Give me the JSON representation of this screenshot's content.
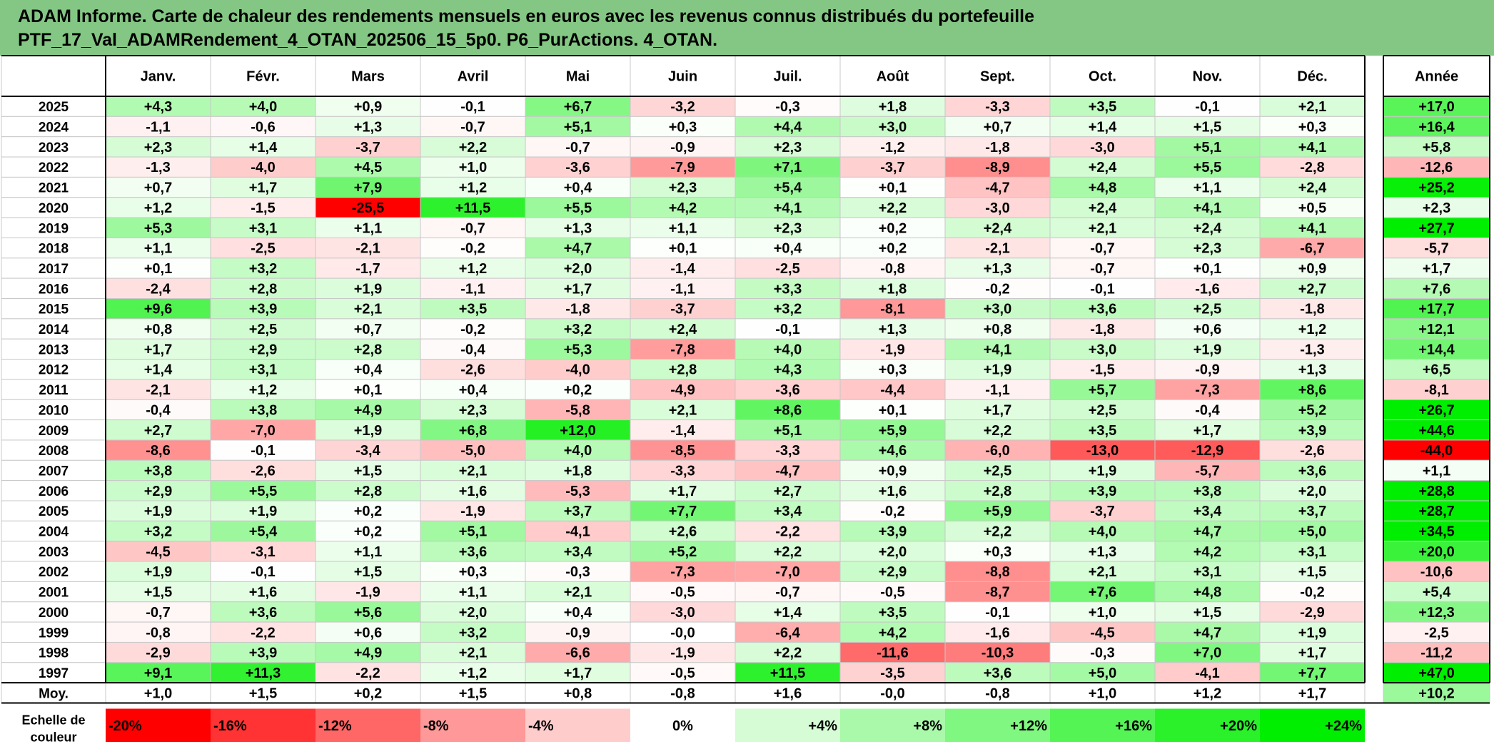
{
  "title": {
    "line1": "ADAM Informe. Carte de chaleur des rendements mensuels en euros avec les revenus connus distribués du portefeuille",
    "line2": "PTF_17_Val_ADAMRendement_4_OTAN_202506_15_5p0. P6_PurActions. 4_OTAN."
  },
  "chart_data": {
    "type": "heatmap",
    "title": "ADAM Informe. Carte de chaleur des rendements mensuels en euros avec les revenus connus distribués du portefeuille PTF_17_Val_ADAMRendement_4_OTAN_202506_15_5p0. P6_PurActions. 4_OTAN.",
    "columns": [
      "Janv.",
      "Févr.",
      "Mars",
      "Avril",
      "Mai",
      "Juin",
      "Juil.",
      "Août",
      "Sept.",
      "Oct.",
      "Nov.",
      "Déc."
    ],
    "year_column": "Année",
    "rows": [
      {
        "year": "2025",
        "values": [
          "+4,3",
          "+4,0",
          "+0,9",
          "-0,1",
          "+6,7",
          "-3,2",
          "-0,3",
          "+1,8",
          "-3,3",
          "+3,5",
          "-0,1",
          "+2,1"
        ],
        "annual": "+17,0"
      },
      {
        "year": "2024",
        "values": [
          "-1,1",
          "-0,6",
          "+1,3",
          "-0,7",
          "+5,1",
          "+0,3",
          "+4,4",
          "+3,0",
          "+0,7",
          "+1,4",
          "+1,5",
          "+0,3"
        ],
        "annual": "+16,4"
      },
      {
        "year": "2023",
        "values": [
          "+2,3",
          "+1,4",
          "-3,7",
          "+2,2",
          "-0,7",
          "-0,9",
          "+2,3",
          "-1,2",
          "-1,8",
          "-3,0",
          "+5,1",
          "+4,1"
        ],
        "annual": "+5,8"
      },
      {
        "year": "2022",
        "values": [
          "-1,3",
          "-4,0",
          "+4,5",
          "+1,0",
          "-3,6",
          "-7,9",
          "+7,1",
          "-3,7",
          "-8,9",
          "+2,4",
          "+5,5",
          "-2,8"
        ],
        "annual": "-12,6"
      },
      {
        "year": "2021",
        "values": [
          "+0,7",
          "+1,7",
          "+7,9",
          "+1,2",
          "+0,4",
          "+2,3",
          "+5,4",
          "+0,1",
          "-4,7",
          "+4,8",
          "+1,1",
          "+2,4"
        ],
        "annual": "+25,2"
      },
      {
        "year": "2020",
        "values": [
          "+1,2",
          "-1,5",
          "-25,5",
          "+11,5",
          "+5,5",
          "+4,2",
          "+4,1",
          "+2,2",
          "-3,0",
          "+2,4",
          "+4,1",
          "+0,5"
        ],
        "annual": "+2,3"
      },
      {
        "year": "2019",
        "values": [
          "+5,3",
          "+3,1",
          "+1,1",
          "-0,7",
          "+1,3",
          "+1,1",
          "+2,3",
          "+0,2",
          "+2,4",
          "+2,1",
          "+2,4",
          "+4,1"
        ],
        "annual": "+27,7"
      },
      {
        "year": "2018",
        "values": [
          "+1,1",
          "-2,5",
          "-2,1",
          "-0,2",
          "+4,7",
          "+0,1",
          "+0,4",
          "+0,2",
          "-2,1",
          "-0,7",
          "+2,3",
          "-6,7"
        ],
        "annual": "-5,7"
      },
      {
        "year": "2017",
        "values": [
          "+0,1",
          "+3,2",
          "-1,7",
          "+1,2",
          "+2,0",
          "-1,4",
          "-2,5",
          "-0,8",
          "+1,3",
          "-0,7",
          "+0,1",
          "+0,9"
        ],
        "annual": "+1,7"
      },
      {
        "year": "2016",
        "values": [
          "-2,4",
          "+2,8",
          "+1,9",
          "-1,1",
          "+1,7",
          "-1,1",
          "+3,3",
          "+1,8",
          "-0,2",
          "-0,1",
          "-1,6",
          "+2,7"
        ],
        "annual": "+7,6"
      },
      {
        "year": "2015",
        "values": [
          "+9,6",
          "+3,9",
          "+2,1",
          "+3,5",
          "-1,8",
          "-3,7",
          "+3,2",
          "-8,1",
          "+3,0",
          "+3,6",
          "+2,5",
          "-1,8"
        ],
        "annual": "+17,7"
      },
      {
        "year": "2014",
        "values": [
          "+0,8",
          "+2,5",
          "+0,7",
          "-0,2",
          "+3,2",
          "+2,4",
          "-0,1",
          "+1,3",
          "+0,8",
          "-1,8",
          "+0,6",
          "+1,2"
        ],
        "annual": "+12,1"
      },
      {
        "year": "2013",
        "values": [
          "+1,7",
          "+2,9",
          "+2,8",
          "-0,4",
          "+5,3",
          "-7,8",
          "+4,0",
          "-1,9",
          "+4,1",
          "+3,0",
          "+1,9",
          "-1,3"
        ],
        "annual": "+14,4"
      },
      {
        "year": "2012",
        "values": [
          "+1,4",
          "+3,1",
          "+0,4",
          "-2,6",
          "-4,0",
          "+2,8",
          "+4,3",
          "+0,3",
          "+1,9",
          "-1,5",
          "-0,9",
          "+1,3"
        ],
        "annual": "+6,5"
      },
      {
        "year": "2011",
        "values": [
          "-2,1",
          "+1,2",
          "+0,1",
          "+0,4",
          "+0,2",
          "-4,9",
          "-3,6",
          "-4,4",
          "-1,1",
          "+5,7",
          "-7,3",
          "+8,6"
        ],
        "annual": "-8,1"
      },
      {
        "year": "2010",
        "values": [
          "-0,4",
          "+3,8",
          "+4,9",
          "+2,3",
          "-5,8",
          "+2,1",
          "+8,6",
          "+0,1",
          "+1,7",
          "+2,5",
          "-0,4",
          "+5,2"
        ],
        "annual": "+26,7"
      },
      {
        "year": "2009",
        "values": [
          "+2,7",
          "-7,0",
          "+1,9",
          "+6,8",
          "+12,0",
          "-1,4",
          "+5,1",
          "+5,9",
          "+2,2",
          "+3,5",
          "+1,7",
          "+3,9"
        ],
        "annual": "+44,6"
      },
      {
        "year": "2008",
        "values": [
          "-8,6",
          "-0,1",
          "-3,4",
          "-5,0",
          "+4,0",
          "-8,5",
          "-3,3",
          "+4,6",
          "-6,0",
          "-13,0",
          "-12,9",
          "-2,6"
        ],
        "annual": "-44,0"
      },
      {
        "year": "2007",
        "values": [
          "+3,8",
          "-2,6",
          "+1,5",
          "+2,1",
          "+1,8",
          "-3,3",
          "-4,7",
          "+0,9",
          "+2,5",
          "+1,9",
          "-5,7",
          "+3,6"
        ],
        "annual": "+1,1"
      },
      {
        "year": "2006",
        "values": [
          "+2,9",
          "+5,5",
          "+2,8",
          "+1,6",
          "-5,3",
          "+1,7",
          "+2,7",
          "+1,6",
          "+2,8",
          "+3,9",
          "+3,8",
          "+2,0"
        ],
        "annual": "+28,8"
      },
      {
        "year": "2005",
        "values": [
          "+1,9",
          "+1,9",
          "+0,2",
          "-1,9",
          "+3,7",
          "+7,7",
          "+3,4",
          "-0,2",
          "+5,9",
          "-3,7",
          "+3,4",
          "+3,7"
        ],
        "annual": "+28,7"
      },
      {
        "year": "2004",
        "values": [
          "+3,2",
          "+5,4",
          "+0,2",
          "+5,1",
          "-4,1",
          "+2,6",
          "-2,2",
          "+3,9",
          "+2,2",
          "+4,0",
          "+4,7",
          "+5,0"
        ],
        "annual": "+34,5"
      },
      {
        "year": "2003",
        "values": [
          "-4,5",
          "-3,1",
          "+1,1",
          "+3,6",
          "+3,4",
          "+5,2",
          "+2,2",
          "+2,0",
          "+0,3",
          "+1,3",
          "+4,2",
          "+3,1"
        ],
        "annual": "+20,0"
      },
      {
        "year": "2002",
        "values": [
          "+1,9",
          "-0,1",
          "+1,5",
          "+0,3",
          "-0,3",
          "-7,3",
          "-7,0",
          "+2,9",
          "-8,8",
          "+2,1",
          "+3,1",
          "+1,5"
        ],
        "annual": "-10,6"
      },
      {
        "year": "2001",
        "values": [
          "+1,5",
          "+1,6",
          "-1,9",
          "+1,1",
          "+2,1",
          "-0,5",
          "-0,7",
          "-0,5",
          "-8,7",
          "+7,6",
          "+4,8",
          "-0,2"
        ],
        "annual": "+5,4"
      },
      {
        "year": "2000",
        "values": [
          "-0,7",
          "+3,6",
          "+5,6",
          "+2,0",
          "+0,4",
          "-3,0",
          "+1,4",
          "+3,5",
          "-0,1",
          "+1,0",
          "+1,5",
          "-2,9"
        ],
        "annual": "+12,3"
      },
      {
        "year": "1999",
        "values": [
          "-0,8",
          "-2,2",
          "+0,6",
          "+3,2",
          "-0,9",
          "-0,0",
          "-6,4",
          "+4,2",
          "-1,6",
          "-4,5",
          "+4,7",
          "+1,9"
        ],
        "annual": "-2,5"
      },
      {
        "year": "1998",
        "values": [
          "-2,9",
          "+3,9",
          "+4,9",
          "+2,1",
          "-6,6",
          "-1,9",
          "+2,2",
          "-11,6",
          "-10,3",
          "-0,3",
          "+7,0",
          "+1,7"
        ],
        "annual": "-11,2"
      },
      {
        "year": "1997",
        "values": [
          "+9,1",
          "+11,3",
          "-2,2",
          "+1,2",
          "+1,7",
          "-0,5",
          "+11,5",
          "-3,5",
          "+3,6",
          "+5,0",
          "-4,1",
          "+7,7"
        ],
        "annual": "+47,0"
      }
    ],
    "average_row": {
      "label": "Moy.",
      "values": [
        "+1,0",
        "+1,5",
        "+0,2",
        "+1,5",
        "+0,8",
        "-0,8",
        "+1,6",
        "-0,0",
        "-0,8",
        "+1,0",
        "+1,2",
        "+1,7"
      ],
      "annual": "+10,2"
    },
    "color_scale": {
      "label_line1": "Echelle de",
      "label_line2": "couleur",
      "steps": [
        {
          "label": "-20%",
          "value": -20
        },
        {
          "label": "-16%",
          "value": -16
        },
        {
          "label": "-12%",
          "value": -12
        },
        {
          "label": "-8%",
          "value": -8
        },
        {
          "label": "-4%",
          "value": -4
        },
        {
          "label": "0%",
          "value": 0
        },
        {
          "label": "+4%",
          "value": 4
        },
        {
          "label": "+8%",
          "value": 8
        },
        {
          "label": "+12%",
          "value": 12
        },
        {
          "label": "+16%",
          "value": 16
        },
        {
          "label": "+20%",
          "value": 20
        },
        {
          "label": "+24%",
          "value": 24
        }
      ]
    },
    "colors": {
      "title_bg": "#84c784",
      "negative_max": "#ff0000",
      "neutral": "#ffffff",
      "positive_max": "#00ee00",
      "grid": "#c8c8c8",
      "border": "#000000"
    }
  }
}
